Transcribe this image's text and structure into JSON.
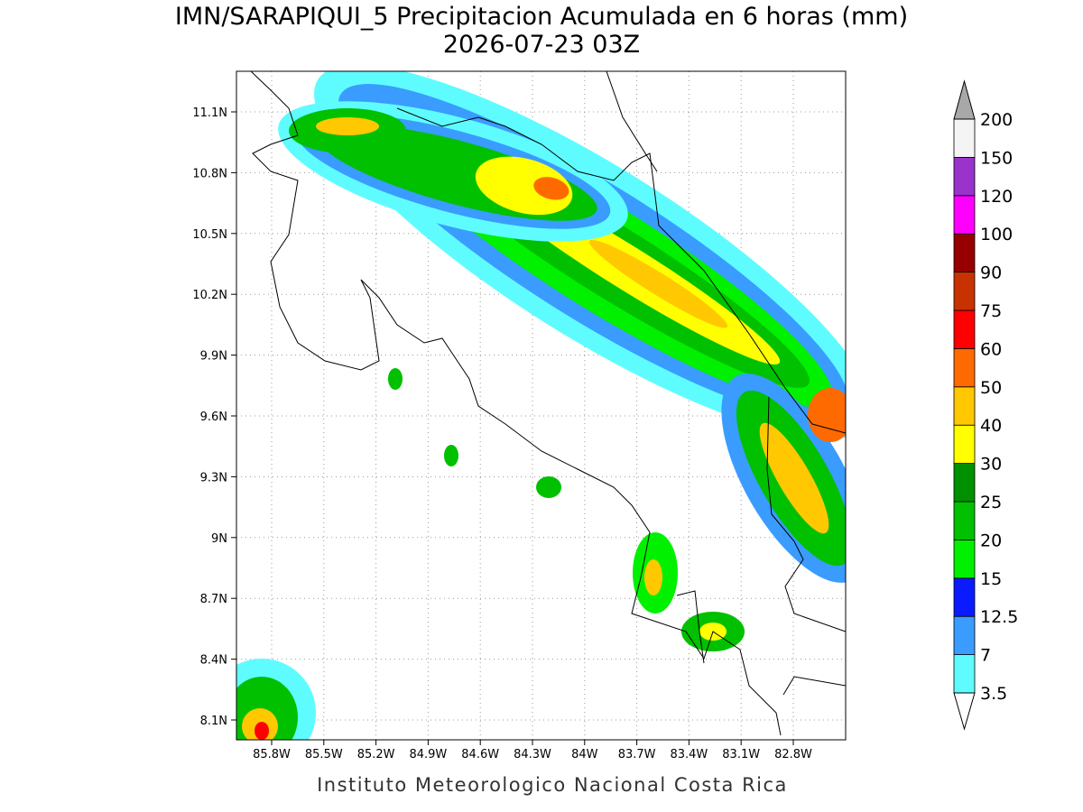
{
  "header": {
    "title": "IMN/SARAPIQUI_5 Precipitacion Acumulada en 6 horas (mm)",
    "subtitle": "2026-07-23 03Z"
  },
  "map": {
    "lat_labels": [
      "11.1N",
      "10.8N",
      "10.5N",
      "10.2N",
      "9.9N",
      "9.6N",
      "9.3N",
      "9N",
      "8.7N",
      "8.4N",
      "8.1N"
    ],
    "lon_labels": [
      "85.8W",
      "85.5W",
      "85.2W",
      "84.9W",
      "84.6W",
      "84.3W",
      "84W",
      "83.7W",
      "83.4W",
      "83.1W",
      "82.8W"
    ]
  },
  "legend": {
    "labels": [
      "3.5",
      "7",
      "12.5",
      "15",
      "20",
      "25",
      "30",
      "40",
      "50",
      "60",
      "75",
      "90",
      "100",
      "120",
      "150",
      "200"
    ],
    "colors": [
      "#5ffcff",
      "#3a9cff",
      "#0a1cff",
      "#00f000",
      "#00c000",
      "#009000",
      "#ffff00",
      "#ffc800",
      "#ff6a00",
      "#ff0000",
      "#c83200",
      "#960000",
      "#ff00ff",
      "#9933cc",
      "#f4f4f4"
    ],
    "under_color": "#ffffff",
    "over_color": "#a8a8a8"
  },
  "footer": "Instituto Meteorologico Nacional Costa Rica"
}
